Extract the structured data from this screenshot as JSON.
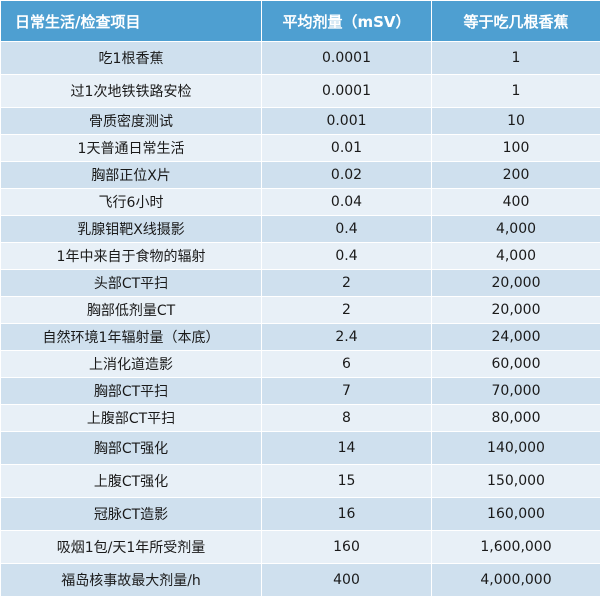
{
  "table": {
    "headers": [
      "日常生活/检查项目",
      "平均剂量（mSV）",
      "等于吃几根香蕉"
    ],
    "rows": [
      {
        "item": "吃1根香蕉",
        "dose": "0.0001",
        "bananas": "1"
      },
      {
        "item": "过1次地铁铁路安检",
        "dose": "0.0001",
        "bananas": "1"
      },
      {
        "item": "骨质密度测试",
        "dose": "0.001",
        "bananas": "10"
      },
      {
        "item": "1天普通日常生活",
        "dose": "0.01",
        "bananas": "100"
      },
      {
        "item": "胸部正位X片",
        "dose": "0.02",
        "bananas": "200"
      },
      {
        "item": "飞行6小时",
        "dose": "0.04",
        "bananas": "400"
      },
      {
        "item": "乳腺钼靶X线摄影",
        "dose": "0.4",
        "bananas": "4,000"
      },
      {
        "item": "1年中来自于食物的辐射",
        "dose": "0.4",
        "bananas": "4,000"
      },
      {
        "item": "头部CT平扫",
        "dose": "2",
        "bananas": "20,000"
      },
      {
        "item": "胸部低剂量CT",
        "dose": "2",
        "bananas": "20,000"
      },
      {
        "item": "自然环境1年辐射量（本底）",
        "dose": "2.4",
        "bananas": "24,000"
      },
      {
        "item": "上消化道造影",
        "dose": "6",
        "bananas": "60,000"
      },
      {
        "item": "胸部CT平扫",
        "dose": "7",
        "bananas": "70,000"
      },
      {
        "item": "上腹部CT平扫",
        "dose": "8",
        "bananas": "80,000"
      },
      {
        "item": "胸部CT强化",
        "dose": "14",
        "bananas": "140,000"
      },
      {
        "item": "上腹CT强化",
        "dose": "15",
        "bananas": "150,000"
      },
      {
        "item": "冠脉CT造影",
        "dose": "16",
        "bananas": "160,000"
      },
      {
        "item": "吸烟1包/天1年所受剂量",
        "dose": "160",
        "bananas": "1,600,000"
      },
      {
        "item": "福岛核事故最大剂量/h",
        "dose": "400",
        "bananas": "4,000,000"
      }
    ]
  }
}
